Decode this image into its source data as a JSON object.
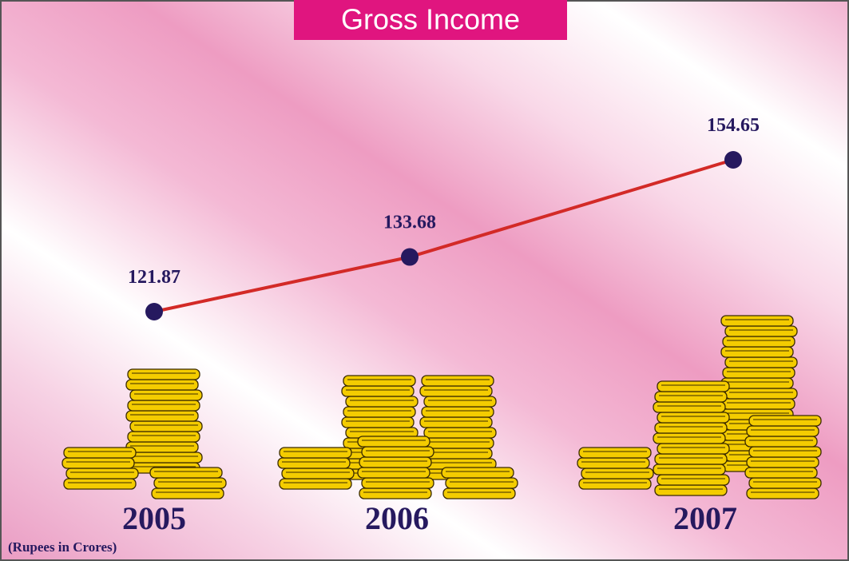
{
  "chart_data": {
    "type": "line",
    "title": "Gross Income",
    "note": "(Rupees in Crores)",
    "categories": [
      "2005",
      "2006",
      "2007"
    ],
    "values": [
      121.87,
      133.68,
      154.65
    ],
    "color": "#d32a27",
    "marker_color": "#26195f"
  }
}
